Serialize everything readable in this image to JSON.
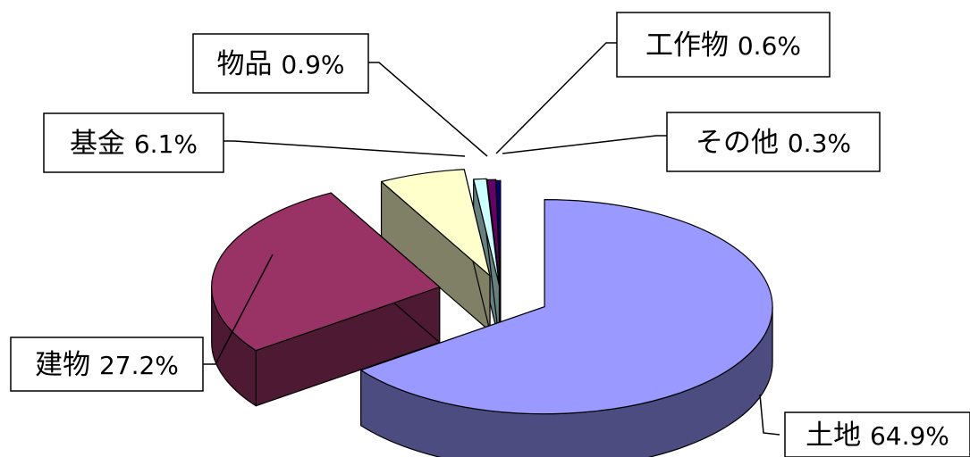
{
  "chart_data": {
    "type": "pie",
    "title": "",
    "slices": [
      {
        "label": "土地",
        "percent_label": "64.9%",
        "value": 64.9,
        "color": "#9999FF",
        "side_color": "#4C4C80"
      },
      {
        "label": "建物",
        "percent_label": "27.2%",
        "value": 27.2,
        "color": "#993366",
        "side_color": "#4D1933"
      },
      {
        "label": "基金",
        "percent_label": "6.1%",
        "value": 6.1,
        "color": "#FFFFCC",
        "side_color": "#808066"
      },
      {
        "label": "物品",
        "percent_label": "0.9%",
        "value": 0.9,
        "color": "#CCFFFF",
        "side_color": "#668080"
      },
      {
        "label": "工作物",
        "percent_label": "0.6%",
        "value": 0.6,
        "color": "#660066",
        "side_color": "#330033"
      },
      {
        "label": "その他",
        "percent_label": "0.3%",
        "value": 0.3,
        "color": "#000080",
        "side_color": "#000040"
      }
    ]
  }
}
